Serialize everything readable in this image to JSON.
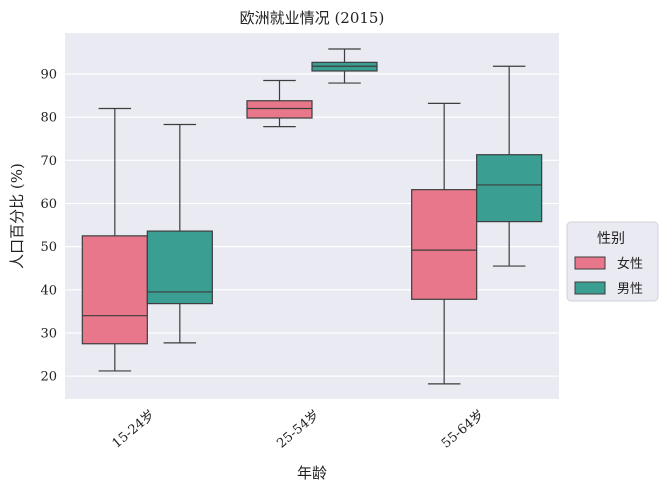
{
  "chart_data": {
    "type": "box",
    "title": "欧洲就业情况 (2015)",
    "xlabel": "年龄",
    "ylabel": "人口百分比 (%)",
    "categories": [
      "15-24岁",
      "25-54岁",
      "55-64岁"
    ],
    "ylim": [
      14.7,
      99.5
    ],
    "yticks": [
      20,
      30,
      40,
      50,
      60,
      70,
      80,
      90
    ],
    "grid": true,
    "legend": {
      "title": "性别",
      "placement": "right",
      "entries": [
        "女性",
        "男性"
      ]
    },
    "series": [
      {
        "name": "女性",
        "color": "#e8778b",
        "boxes": [
          {
            "whisker_low": 21.2,
            "q1": 27.5,
            "median": 34.0,
            "q3": 52.5,
            "whisker_high": 82.0
          },
          {
            "whisker_low": 77.8,
            "q1": 79.8,
            "median": 82.0,
            "q3": 83.8,
            "whisker_high": 88.5
          },
          {
            "whisker_low": 18.2,
            "q1": 37.8,
            "median": 49.2,
            "q3": 63.2,
            "whisker_high": 83.2
          }
        ]
      },
      {
        "name": "男性",
        "color": "#3a9e92",
        "boxes": [
          {
            "whisker_low": 27.7,
            "q1": 36.8,
            "median": 39.5,
            "q3": 53.6,
            "whisker_high": 78.3
          },
          {
            "whisker_low": 87.9,
            "q1": 90.7,
            "median": 91.8,
            "q3": 92.7,
            "whisker_high": 95.8
          },
          {
            "whisker_low": 45.5,
            "q1": 55.8,
            "median": 64.3,
            "q3": 71.3,
            "whisker_high": 91.8
          }
        ]
      }
    ]
  }
}
